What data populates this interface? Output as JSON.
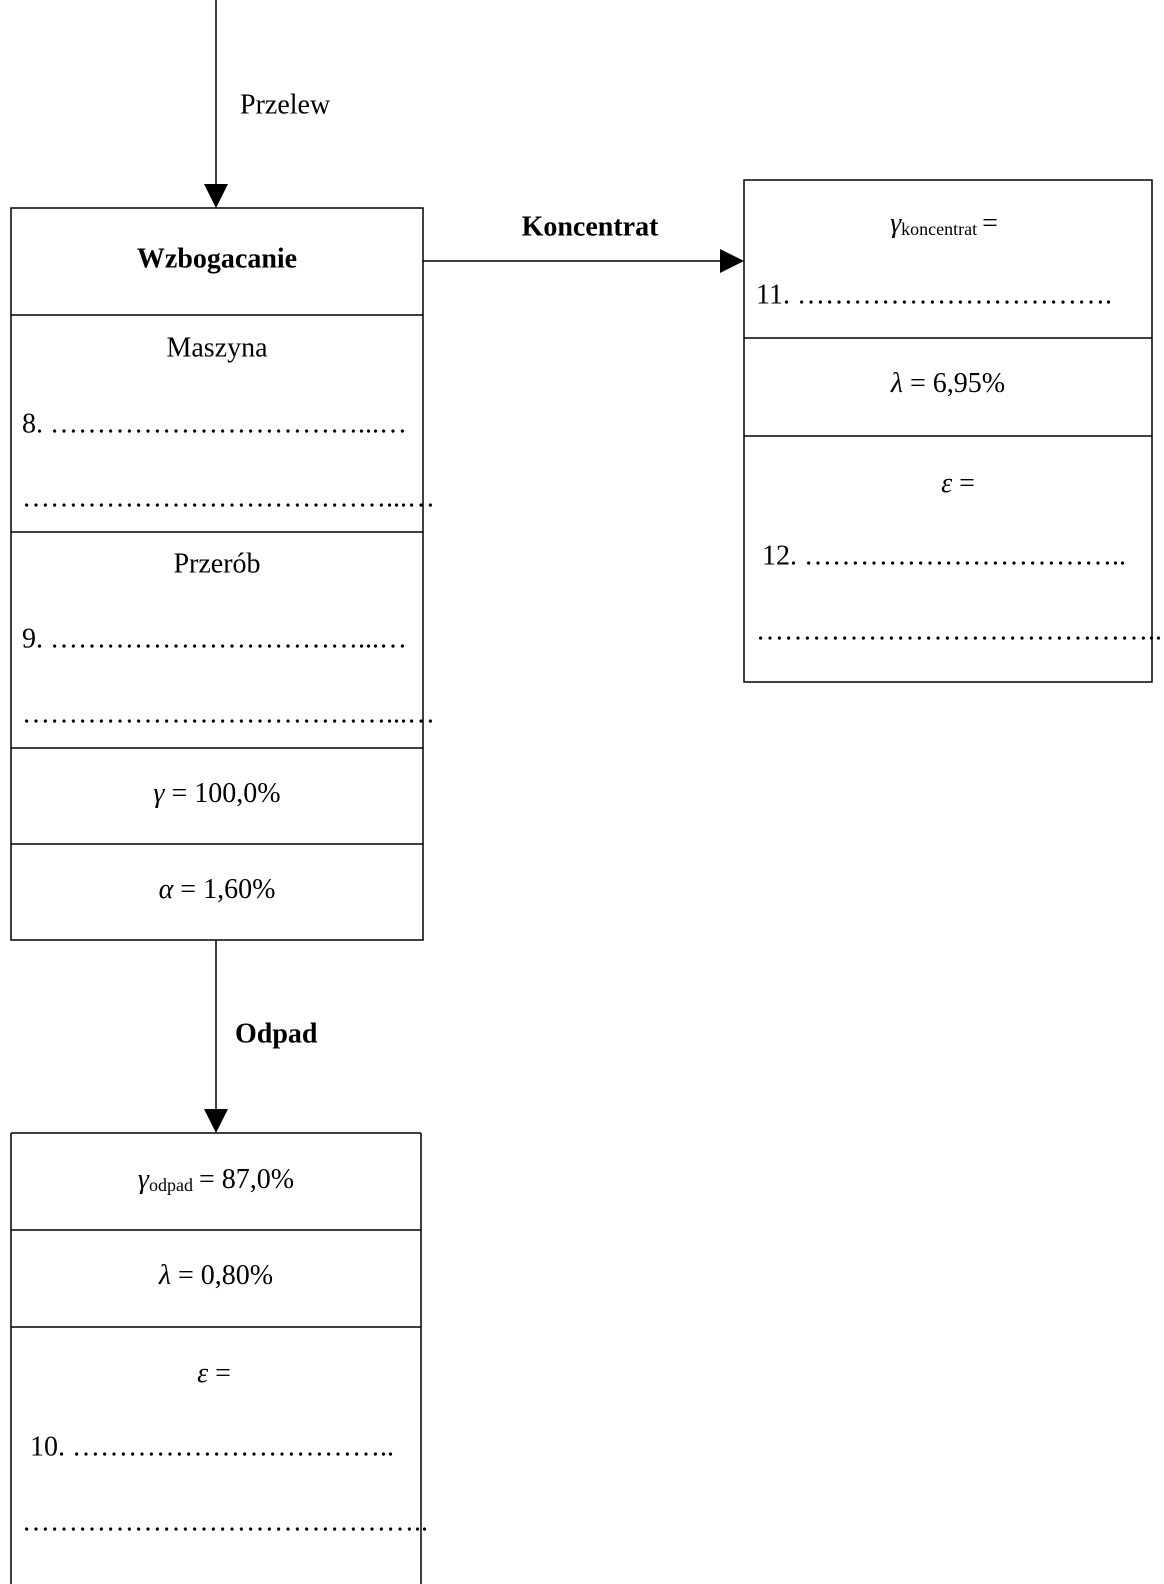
{
  "input": {
    "label": "Przelew"
  },
  "process": {
    "title": "Wzbogacanie",
    "machine_label": "Maszyna",
    "machine_answer": [
      "8. ……………………………...…",
      "…………………………………...…"
    ],
    "throughput_label": "Przerób",
    "throughput_answer": [
      "9. ……………………………...…",
      "…………………………………...…"
    ],
    "yield": {
      "symbol": "γ",
      "text": "= 100,0%"
    },
    "grade": {
      "symbol": "α",
      "text": "= 1,60%"
    }
  },
  "concentrate": {
    "label": "Koncentrat",
    "yield": {
      "symbol": "γ",
      "subscript": "koncentrat",
      "text": "="
    },
    "yield_answer": "11. …………………………….",
    "grade": {
      "symbol": "λ",
      "text": "= 6,95%"
    },
    "recovery": {
      "symbol": "ε",
      "text": "="
    },
    "recovery_answer": [
      "12. ……………………………..",
      "…………………………………….."
    ]
  },
  "tailings": {
    "label": "Odpad",
    "yield": {
      "symbol": "γ",
      "subscript": "odpad",
      "text": "= 87,0%"
    },
    "grade": {
      "symbol": "λ",
      "text": "= 0,80%"
    },
    "recovery": {
      "symbol": "ε",
      "text": "="
    },
    "recovery_answer": [
      "10. ……………………………..",
      "…………………………………….."
    ]
  }
}
